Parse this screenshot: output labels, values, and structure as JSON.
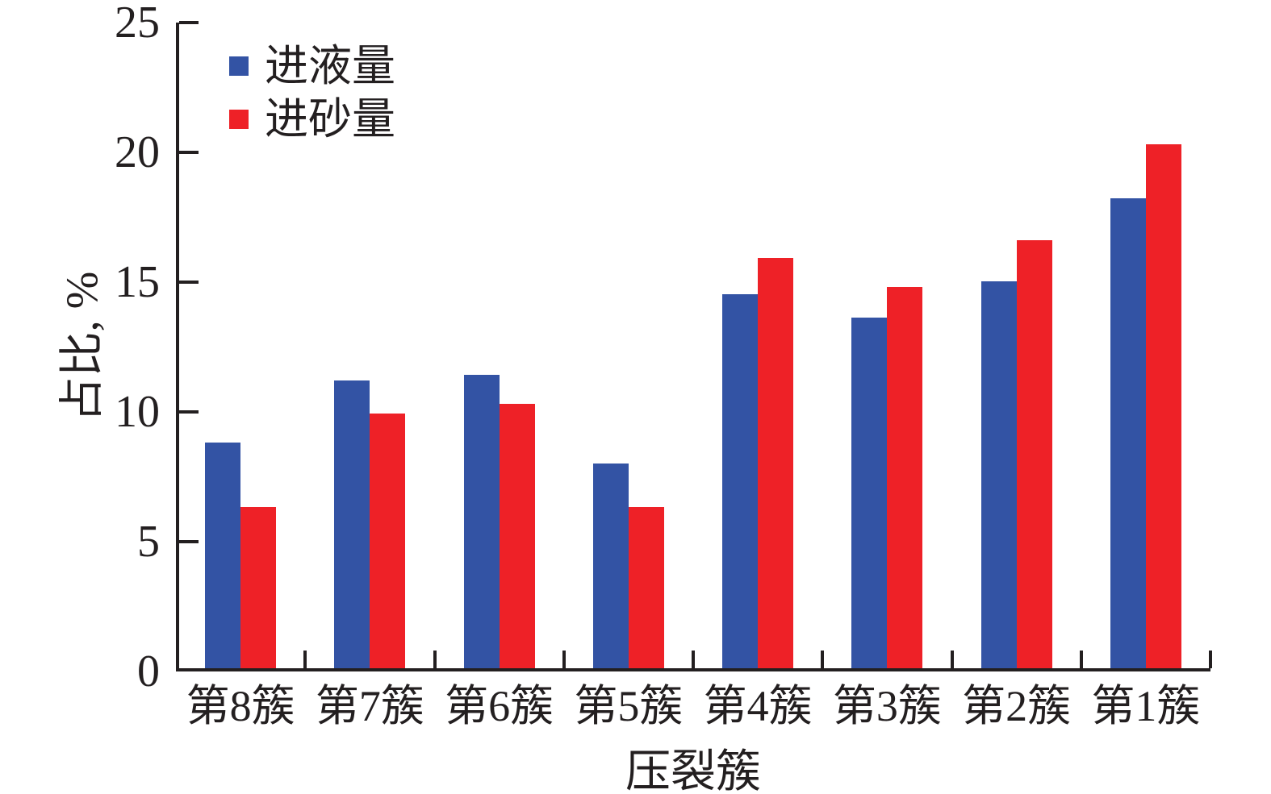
{
  "chart_data": {
    "type": "bar",
    "title": "",
    "categories": [
      "第8簇",
      "第7簇",
      "第6簇",
      "第5簇",
      "第4簇",
      "第3簇",
      "第2簇",
      "第1簇"
    ],
    "series": [
      {
        "name": "进液量",
        "color": "#3353a4",
        "values": [
          8.7,
          11.1,
          11.3,
          7.9,
          14.4,
          13.5,
          14.9,
          18.1
        ]
      },
      {
        "name": "进砂量",
        "color": "#ee2127",
        "values": [
          6.2,
          9.8,
          10.2,
          6.2,
          15.8,
          14.7,
          16.5,
          20.2
        ]
      }
    ],
    "xlabel": "压裂簇",
    "ylabel": "占比, %",
    "ylim": [
      0,
      25
    ],
    "yticks": [
      0,
      5,
      10,
      15,
      20,
      25
    ],
    "grid": false,
    "legend_position": "upper-left-inside",
    "axis_color": "#231f20"
  }
}
